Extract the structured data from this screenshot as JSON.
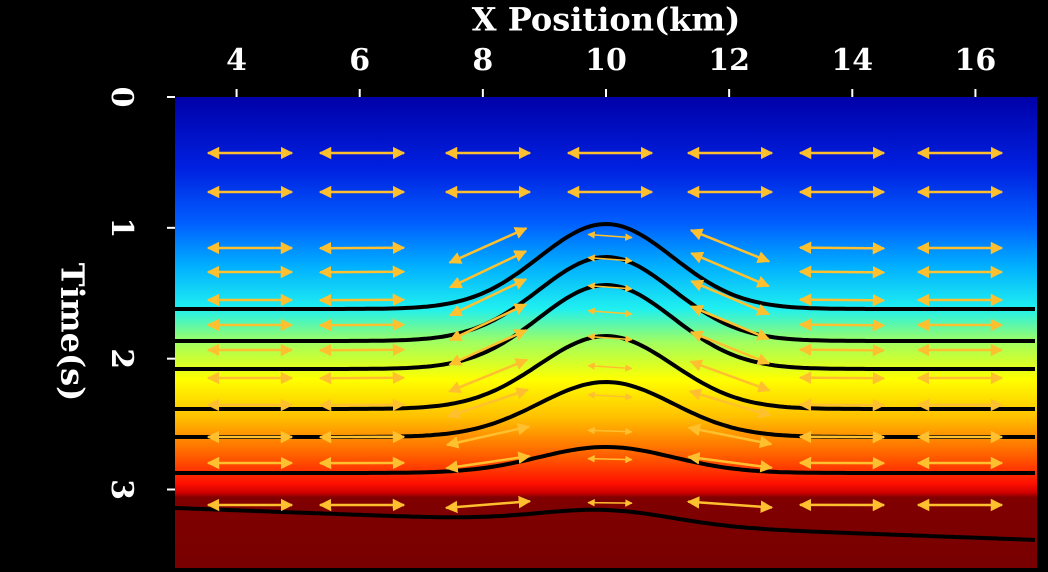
{
  "chart_data": {
    "type": "image",
    "title": "X Position(km)",
    "y_label": "Time(s)",
    "xlim": [
      3,
      17
    ],
    "xticks": [
      4,
      6,
      8,
      10,
      12,
      14,
      16
    ],
    "x_axis_position": "top",
    "ylim": [
      0,
      3.6
    ],
    "yticks": [
      0,
      1,
      2,
      3
    ],
    "y_inverted": true
  }
}
